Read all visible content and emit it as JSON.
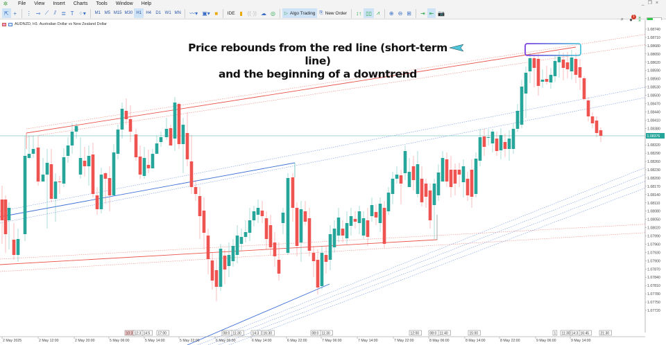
{
  "menubar": {
    "items": [
      "File",
      "View",
      "Insert",
      "Charts",
      "Tools",
      "Window",
      "Help"
    ]
  },
  "toolbar": {
    "timeframes": [
      "M1",
      "M5",
      "M15",
      "M30",
      "H1",
      "H4",
      "D1",
      "W1",
      "MN"
    ],
    "active_timeframe": "H1",
    "ide_label": "IDE",
    "algo_trading_label": "Algo Trading",
    "new_order_label": "New Order",
    "notification_count": "1"
  },
  "chart": {
    "title": "AUDNZD, H1:  Australian Dollar vs New Zealand Dollar",
    "symbol": "AUDNZD",
    "timeframe": "H1",
    "current_price": "1.08376",
    "annotation_line1": "Price rebounds from the red line (short-term line)",
    "annotation_line2": "and the beginning of a downtrend",
    "colors": {
      "bull": "#26a69a",
      "bear": "#ef5350",
      "red_channel": "#e9524a",
      "blue_channel": "#3d6fd6",
      "price_line": "#7fc8c2",
      "highlight_box_start": "#7a3fe0",
      "highlight_box_end": "#4ec5d8"
    }
  },
  "chart_data": {
    "type": "candlestick",
    "title": "AUDNZD, H1: Australian Dollar vs New Zealand Dollar",
    "xlabel": "",
    "ylabel": "",
    "y_ticks": [
      "1.08740",
      "1.08710",
      "1.08680",
      "1.08650",
      "1.08620",
      "1.08590",
      "1.08560",
      "1.08530",
      "1.08500",
      "1.08470",
      "1.08440",
      "1.08410",
      "1.08380",
      "1.08350",
      "1.08320",
      "1.08290",
      "1.08260",
      "1.08230",
      "1.08200",
      "1.08170",
      "1.08140",
      "1.08110",
      "1.08080",
      "1.08050",
      "1.08020",
      "1.07990",
      "1.07960",
      "1.07930",
      "1.07900",
      "1.07870",
      "1.07840",
      "1.07810",
      "1.07780",
      "1.07750",
      "1.07720"
    ],
    "x_ticks": [
      "2 May 2025",
      "2 May 12:00",
      "2 May 20:00",
      "5 May 06:00",
      "5 May 14:00",
      "5 May 22:00",
      "6 May 06:00",
      "6 May 14:00",
      "6 May 22:00",
      "7 May 06:00",
      "7 May 14:00",
      "7 May 22:00",
      "8 May 06:00",
      "8 May 14:00",
      "8 May 22:00",
      "9 May 06:00",
      "9 May 14:00"
    ],
    "ylim": [
      1.077,
      1.0876
    ],
    "current_price": 1.08376,
    "time_markers": [
      "10:3",
      "12:3",
      "14:5",
      "17:00",
      "08:0",
      "11:30",
      "14:3",
      "16:30",
      "08:0",
      "11:30",
      "12:00",
      "08:0",
      "11:40",
      "15:00",
      "1",
      "11:30",
      "14:3",
      "16:45",
      "21:30"
    ],
    "annotation": "Price rebounds from the red line (short-term line) and the beginning of a downtrend",
    "candles": [
      {
        "o": 1.0813,
        "h": 1.0816,
        "l": 1.0799,
        "c": 1.0808
      },
      {
        "o": 1.0804,
        "h": 1.0812,
        "l": 1.0798,
        "c": 1.081
      },
      {
        "o": 1.081,
        "h": 1.0812,
        "l": 1.0796,
        "c": 1.0803
      },
      {
        "o": 1.0806,
        "h": 1.081,
        "l": 1.0793,
        "c": 1.0799
      },
      {
        "o": 1.0799,
        "h": 1.0808,
        "l": 1.0793,
        "c": 1.0802
      },
      {
        "o": 1.0802,
        "h": 1.083,
        "l": 1.08,
        "c": 1.0829
      },
      {
        "o": 1.0829,
        "h": 1.0833,
        "l": 1.0826,
        "c": 1.0832
      },
      {
        "o": 1.083,
        "h": 1.0836,
        "l": 1.0828,
        "c": 1.0832
      },
      {
        "o": 1.0833,
        "h": 1.0837,
        "l": 1.0818,
        "c": 1.082
      },
      {
        "o": 1.082,
        "h": 1.0826,
        "l": 1.0814,
        "c": 1.0823
      },
      {
        "o": 1.0822,
        "h": 1.0828,
        "l": 1.0806,
        "c": 1.0826
      },
      {
        "o": 1.0827,
        "h": 1.0831,
        "l": 1.0808,
        "c": 1.0814
      },
      {
        "o": 1.0815,
        "h": 1.0822,
        "l": 1.0806,
        "c": 1.0822
      },
      {
        "o": 1.0822,
        "h": 1.0824,
        "l": 1.0814,
        "c": 1.0822
      },
      {
        "o": 1.0822,
        "h": 1.0832,
        "l": 1.0814,
        "c": 1.0832
      },
      {
        "o": 1.0832,
        "h": 1.0836,
        "l": 1.0827,
        "c": 1.0835
      },
      {
        "o": 1.0836,
        "h": 1.0839,
        "l": 1.0832,
        "c": 1.0839
      },
      {
        "o": 1.084,
        "h": 1.0841,
        "l": 1.0837,
        "c": 1.0842
      },
      {
        "o": 1.0822,
        "h": 1.0842,
        "l": 1.0818,
        "c": 1.0828
      },
      {
        "o": 1.0828,
        "h": 1.0831,
        "l": 1.0821,
        "c": 1.0826
      },
      {
        "o": 1.0826,
        "h": 1.0832,
        "l": 1.0814,
        "c": 1.083
      },
      {
        "o": 1.083,
        "h": 1.0833,
        "l": 1.0814,
        "c": 1.0816
      },
      {
        "o": 1.0816,
        "h": 1.0821,
        "l": 1.0809,
        "c": 1.0811
      },
      {
        "o": 1.0812,
        "h": 1.0824,
        "l": 1.0808,
        "c": 1.0818
      },
      {
        "o": 1.0817,
        "h": 1.0822,
        "l": 1.081,
        "c": 1.082
      },
      {
        "o": 1.0818,
        "h": 1.0833,
        "l": 1.0814,
        "c": 1.0832
      },
      {
        "o": 1.0832,
        "h": 1.084,
        "l": 1.083,
        "c": 1.084
      },
      {
        "o": 1.0845,
        "h": 1.0851,
        "l": 1.084,
        "c": 1.0848
      },
      {
        "o": 1.0848,
        "h": 1.0852,
        "l": 1.0842,
        "c": 1.0845
      },
      {
        "o": 1.0845,
        "h": 1.0847,
        "l": 1.0837,
        "c": 1.0839
      },
      {
        "o": 1.0839,
        "h": 1.0841,
        "l": 1.0827,
        "c": 1.083
      },
      {
        "o": 1.083,
        "h": 1.0836,
        "l": 1.0823,
        "c": 1.0825
      },
      {
        "o": 1.0825,
        "h": 1.0834,
        "l": 1.0822,
        "c": 1.0833
      },
      {
        "o": 1.0833,
        "h": 1.0836,
        "l": 1.0823,
        "c": 1.0832
      },
      {
        "o": 1.0831,
        "h": 1.0838,
        "l": 1.0828,
        "c": 1.0835
      },
      {
        "o": 1.0835,
        "h": 1.084,
        "l": 1.083,
        "c": 1.0838
      },
      {
        "o": 1.0838,
        "h": 1.0841,
        "l": 1.0833,
        "c": 1.0837
      },
      {
        "o": 1.0839,
        "h": 1.0841,
        "l": 1.0835,
        "c": 1.0835
      },
      {
        "o": 1.084,
        "h": 1.0842,
        "l": 1.0833,
        "c": 1.0834
      },
      {
        "o": 1.082,
        "h": 1.084,
        "l": 1.0816,
        "c": 1.0841
      },
      {
        "o": 1.0839,
        "h": 1.0841,
        "l": 1.0824,
        "c": 1.0831
      },
      {
        "o": 1.0829,
        "h": 1.0832,
        "l": 1.0816,
        "c": 1.0819
      },
      {
        "o": 1.0819,
        "h": 1.082,
        "l": 1.0806,
        "c": 1.0812
      },
      {
        "o": 1.0812,
        "h": 1.0813,
        "l": 1.0802,
        "c": 1.0808
      },
      {
        "o": 1.0808,
        "h": 1.081,
        "l": 1.0794,
        "c": 1.0796
      },
      {
        "o": 1.0796,
        "h": 1.0798,
        "l": 1.0786,
        "c": 1.0788
      },
      {
        "o": 1.0788,
        "h": 1.079,
        "l": 1.0782,
        "c": 1.0784
      },
      {
        "o": 1.0784,
        "h": 1.0786,
        "l": 1.0779,
        "c": 1.0781
      },
      {
        "o": 1.0781,
        "h": 1.0782,
        "l": 1.0766,
        "c": 1.0769
      },
      {
        "o": 1.077,
        "h": 1.0774,
        "l": 1.0753,
        "c": 1.076
      },
      {
        "o": 1.0756,
        "h": 1.0758,
        "l": 1.0746,
        "c": 1.0753
      },
      {
        "o": 1.0753,
        "h": 1.0765,
        "l": 1.0751,
        "c": 1.0764
      },
      {
        "o": 1.0764,
        "h": 1.0768,
        "l": 1.0761,
        "c": 1.0763
      },
      {
        "o": 1.0763,
        "h": 1.0769,
        "l": 1.076,
        "c": 1.0767
      },
      {
        "o": 1.0767,
        "h": 1.0772,
        "l": 1.0764,
        "c": 1.077
      },
      {
        "o": 1.077,
        "h": 1.078,
        "l": 1.0768,
        "c": 1.0778
      },
      {
        "o": 1.0778,
        "h": 1.0782,
        "l": 1.0773,
        "c": 1.078
      },
      {
        "o": 1.078,
        "h": 1.0785,
        "l": 1.0776,
        "c": 1.0782
      },
      {
        "o": 1.0782,
        "h": 1.079,
        "l": 1.078,
        "c": 1.0788
      },
      {
        "o": 1.0788,
        "h": 1.0794,
        "l": 1.0784,
        "c": 1.0791
      },
      {
        "o": 1.079,
        "h": 1.0792,
        "l": 1.0782,
        "c": 1.0784
      },
      {
        "o": 1.0783,
        "h": 1.0785,
        "l": 1.0774,
        "c": 1.0782
      },
      {
        "o": 1.0778,
        "h": 1.078,
        "l": 1.077,
        "c": 1.0775
      },
      {
        "o": 1.0775,
        "h": 1.0804,
        "l": 1.0774,
        "c": 1.0805
      },
      {
        "o": 1.0804,
        "h": 1.0806,
        "l": 1.079,
        "c": 1.0798
      },
      {
        "o": 1.0798,
        "h": 1.0799,
        "l": 1.0776,
        "c": 1.0781
      },
      {
        "o": 1.0781,
        "h": 1.0799,
        "l": 1.0778,
        "c": 1.0796
      },
      {
        "o": 1.0796,
        "h": 1.08,
        "l": 1.0788,
        "c": 1.0792
      },
      {
        "o": 1.0792,
        "h": 1.0794,
        "l": 1.0774,
        "c": 1.0778
      }
    ],
    "trendlines": [
      {
        "name": "red short-term channel",
        "color": "#e9524a",
        "style": "solid",
        "from": [
          38,
          192
        ],
        "to": [
          830,
          68
        ]
      },
      {
        "name": "blue channel",
        "color": "#3d6fd6",
        "style": "solid",
        "from": [
          0,
          313
        ],
        "to": [
          425,
          235
        ]
      },
      {
        "name": "red long-term channel",
        "color": "#e9524a",
        "style": "solid",
        "from": [
          0,
          382
        ],
        "to": [
          630,
          346
        ]
      },
      {
        "name": "blue lower channel",
        "color": "#3d6fd6",
        "style": "solid",
        "from": [
          270,
          498
        ],
        "to": [
          475,
          410
        ]
      }
    ]
  }
}
